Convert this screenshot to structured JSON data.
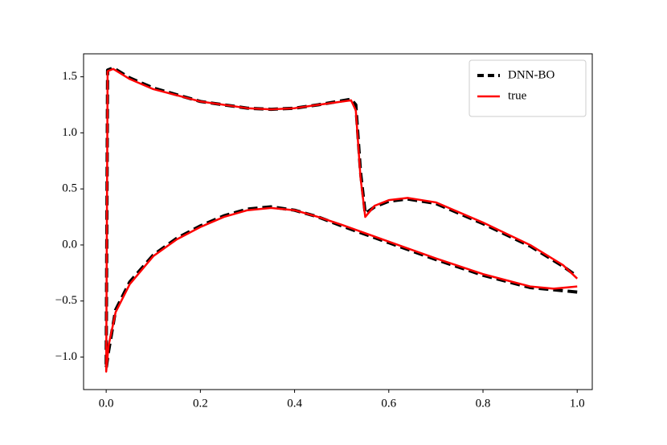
{
  "chart_data": {
    "type": "line",
    "x": [
      1.0,
      0.95,
      0.9,
      0.8,
      0.7,
      0.6,
      0.5,
      0.45,
      0.4,
      0.35,
      0.3,
      0.25,
      0.2,
      0.15,
      0.1,
      0.05,
      0.02,
      0.005,
      0.0,
      0.003,
      0.015,
      0.05,
      0.1,
      0.2,
      0.3,
      0.35,
      0.4,
      0.45,
      0.52,
      0.53,
      0.54,
      0.55,
      0.57,
      0.6,
      0.64,
      0.7,
      0.8,
      0.9,
      0.97,
      1.0
    ],
    "series": [
      {
        "name": "DNN-BO",
        "color": "#000000",
        "dashed": true,
        "values": [
          -0.42,
          -0.4,
          -0.38,
          -0.27,
          -0.13,
          0.02,
          0.17,
          0.25,
          0.31,
          0.34,
          0.32,
          0.26,
          0.17,
          0.06,
          -0.09,
          -0.33,
          -0.58,
          -0.95,
          -1.1,
          1.56,
          1.58,
          1.49,
          1.4,
          1.28,
          1.22,
          1.21,
          1.22,
          1.25,
          1.3,
          1.25,
          0.65,
          0.28,
          0.34,
          0.39,
          0.41,
          0.37,
          0.19,
          -0.01,
          -0.19,
          -0.28
        ]
      },
      {
        "name": "true",
        "color": "#ff0000",
        "dashed": false,
        "values": [
          -0.37,
          -0.39,
          -0.37,
          -0.26,
          -0.12,
          0.03,
          0.18,
          0.25,
          0.31,
          0.33,
          0.31,
          0.25,
          0.16,
          0.05,
          -0.1,
          -0.35,
          -0.6,
          -0.9,
          -1.13,
          1.55,
          1.57,
          1.48,
          1.39,
          1.28,
          1.22,
          1.21,
          1.22,
          1.25,
          1.29,
          1.2,
          0.6,
          0.25,
          0.35,
          0.4,
          0.42,
          0.38,
          0.2,
          0.0,
          -0.18,
          -0.3
        ]
      }
    ],
    "xlim": [
      -0.048,
      1.032
    ],
    "ylim": [
      -1.29,
      1.705
    ],
    "xticks": [
      {
        "value": 0.0,
        "label": "0.0"
      },
      0.2,
      0.4,
      0.6,
      0.8,
      {
        "value": 1.0,
        "label": "1.0"
      }
    ],
    "yticks": [
      {
        "value": -1.0,
        "label": "−1.0"
      },
      {
        "value": -0.5,
        "label": "−0.5"
      },
      {
        "value": 0.0,
        "label": "0.0"
      },
      {
        "value": 0.5,
        "label": "0.5"
      },
      {
        "value": 1.0,
        "label": "1.0"
      },
      {
        "value": 1.5,
        "label": "1.5"
      }
    ],
    "legend": "upper right",
    "grid": false
  }
}
